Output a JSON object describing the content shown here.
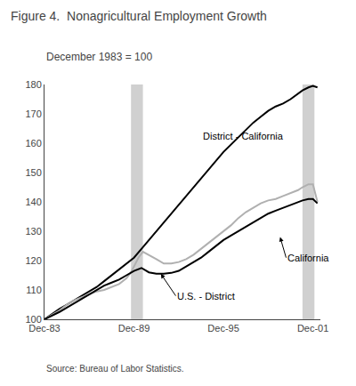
{
  "chart_data": {
    "type": "line",
    "title": "Figure 4.  Nonagricultural Employment Growth",
    "subtitle": "December 1983 = 100",
    "source": "Source: Bureau of Labor Statistics.",
    "xlim": [
      0,
      18.5
    ],
    "xticks": [
      {
        "value": 0,
        "label": "Dec-83"
      },
      {
        "value": 6,
        "label": "Dec-89"
      },
      {
        "value": 12,
        "label": "Dec-95"
      },
      {
        "value": 18,
        "label": "Dec-01"
      }
    ],
    "ylim": [
      100,
      180
    ],
    "yticks": [
      100,
      110,
      120,
      130,
      140,
      150,
      160,
      170,
      180
    ],
    "grid": false,
    "shade_regions": [
      {
        "start": 5.8,
        "end": 6.6,
        "color": "#c8c8c8"
      },
      {
        "start": 17.3,
        "end": 18.1,
        "color": "#c8c8c8"
      }
    ],
    "series": [
      {
        "color": "#000000",
        "x": [
          0,
          0.5,
          1,
          1.5,
          2,
          2.5,
          3,
          3.5,
          4,
          4.5,
          5,
          5.5,
          6,
          6.5,
          7,
          7.5,
          8,
          8.5,
          9,
          9.5,
          10,
          10.5,
          11,
          11.5,
          12,
          12.5,
          13,
          13.5,
          14,
          14.5,
          15,
          15.5,
          16,
          16.5,
          17,
          17.3,
          17.7,
          18.0,
          18.3
        ],
        "values": [
          100,
          101.8,
          103.5,
          105,
          106.5,
          108,
          109.5,
          111,
          113,
          115,
          117,
          119,
          121,
          124,
          127,
          130,
          133,
          136,
          139,
          142,
          145,
          148,
          151,
          154,
          157,
          159.5,
          162,
          164.5,
          167,
          169,
          171,
          172.5,
          173.5,
          175,
          177,
          178,
          179,
          179.5,
          179
        ]
      },
      {
        "color": "#b0b0b0",
        "x": [
          0,
          0.5,
          1,
          1.5,
          2,
          2.5,
          3,
          3.5,
          4,
          4.5,
          5,
          5.5,
          5.8,
          6.0,
          6.3,
          6.6,
          7,
          7.5,
          8,
          8.5,
          9,
          9.5,
          10,
          10.5,
          11,
          11.5,
          12,
          12.5,
          13,
          13.5,
          14,
          14.5,
          15,
          15.5,
          16,
          16.5,
          17,
          17.3,
          17.7,
          18.0,
          18.3
        ],
        "values": [
          100,
          101.5,
          103,
          105,
          106.5,
          107.5,
          108.5,
          109.5,
          110,
          111,
          112,
          114,
          116,
          118,
          121,
          123,
          122,
          120.5,
          119,
          119,
          119.5,
          120.5,
          122,
          124,
          126,
          128,
          130,
          132,
          134.5,
          136.5,
          138,
          139.5,
          140.5,
          141,
          142,
          143,
          144,
          145,
          146,
          146,
          140
        ]
      },
      {
        "color": "#000000",
        "x": [
          0,
          0.5,
          1,
          1.5,
          2,
          2.5,
          3,
          3.5,
          4,
          4.5,
          5,
          5.5,
          6,
          6.5,
          7,
          7.5,
          8,
          8.5,
          9,
          9.5,
          10,
          10.5,
          11,
          11.5,
          12,
          12.5,
          13,
          13.5,
          14,
          14.5,
          15,
          15.5,
          16,
          16.5,
          17,
          17.3,
          17.7,
          18.0,
          18.3
        ],
        "values": [
          100,
          101.2,
          102.5,
          104,
          105.5,
          107,
          108.5,
          110,
          111.5,
          112.5,
          113.5,
          115,
          116.5,
          117.5,
          116,
          115.5,
          115.5,
          115.8,
          116.5,
          118,
          119.5,
          121,
          123,
          125,
          127,
          128.5,
          130,
          131.5,
          133,
          134.5,
          136,
          137,
          138,
          139,
          140,
          140.5,
          141,
          141,
          139.5
        ]
      }
    ],
    "annotations": [
      {
        "text": "District - California",
        "x": 10.5,
        "y": 160
      },
      {
        "text": "U.S. - District",
        "x": 8.8,
        "y": 108,
        "arrow_x": 7.8,
        "arrow_y": 115.5
      },
      {
        "text": "California",
        "x": 16.2,
        "y": 121,
        "arrow_x": 15.8,
        "arrow_y": 128
      }
    ]
  }
}
